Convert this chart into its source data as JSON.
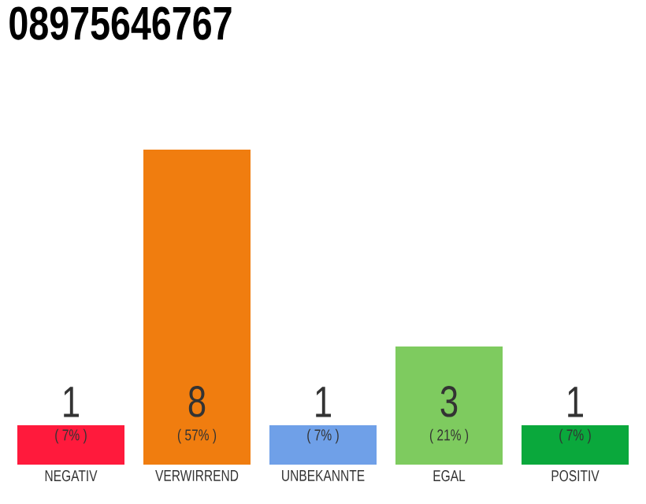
{
  "chart_data": {
    "type": "bar",
    "title": "08975646767",
    "categories": [
      "NEGATIV",
      "VERWIRREND",
      "UNBEKANNTE",
      "EGAL",
      "POSITIV"
    ],
    "values": [
      1,
      8,
      1,
      3,
      1
    ],
    "colors": [
      "#ff1a3c",
      "#f07d0f",
      "#6fa0e8",
      "#7ecb5f",
      "#0aa83c"
    ],
    "data_labels": true,
    "annotations": [
      "( 7% )",
      "( 57% )",
      "( 7% )",
      "( 21% )",
      "( 7% )"
    ]
  }
}
